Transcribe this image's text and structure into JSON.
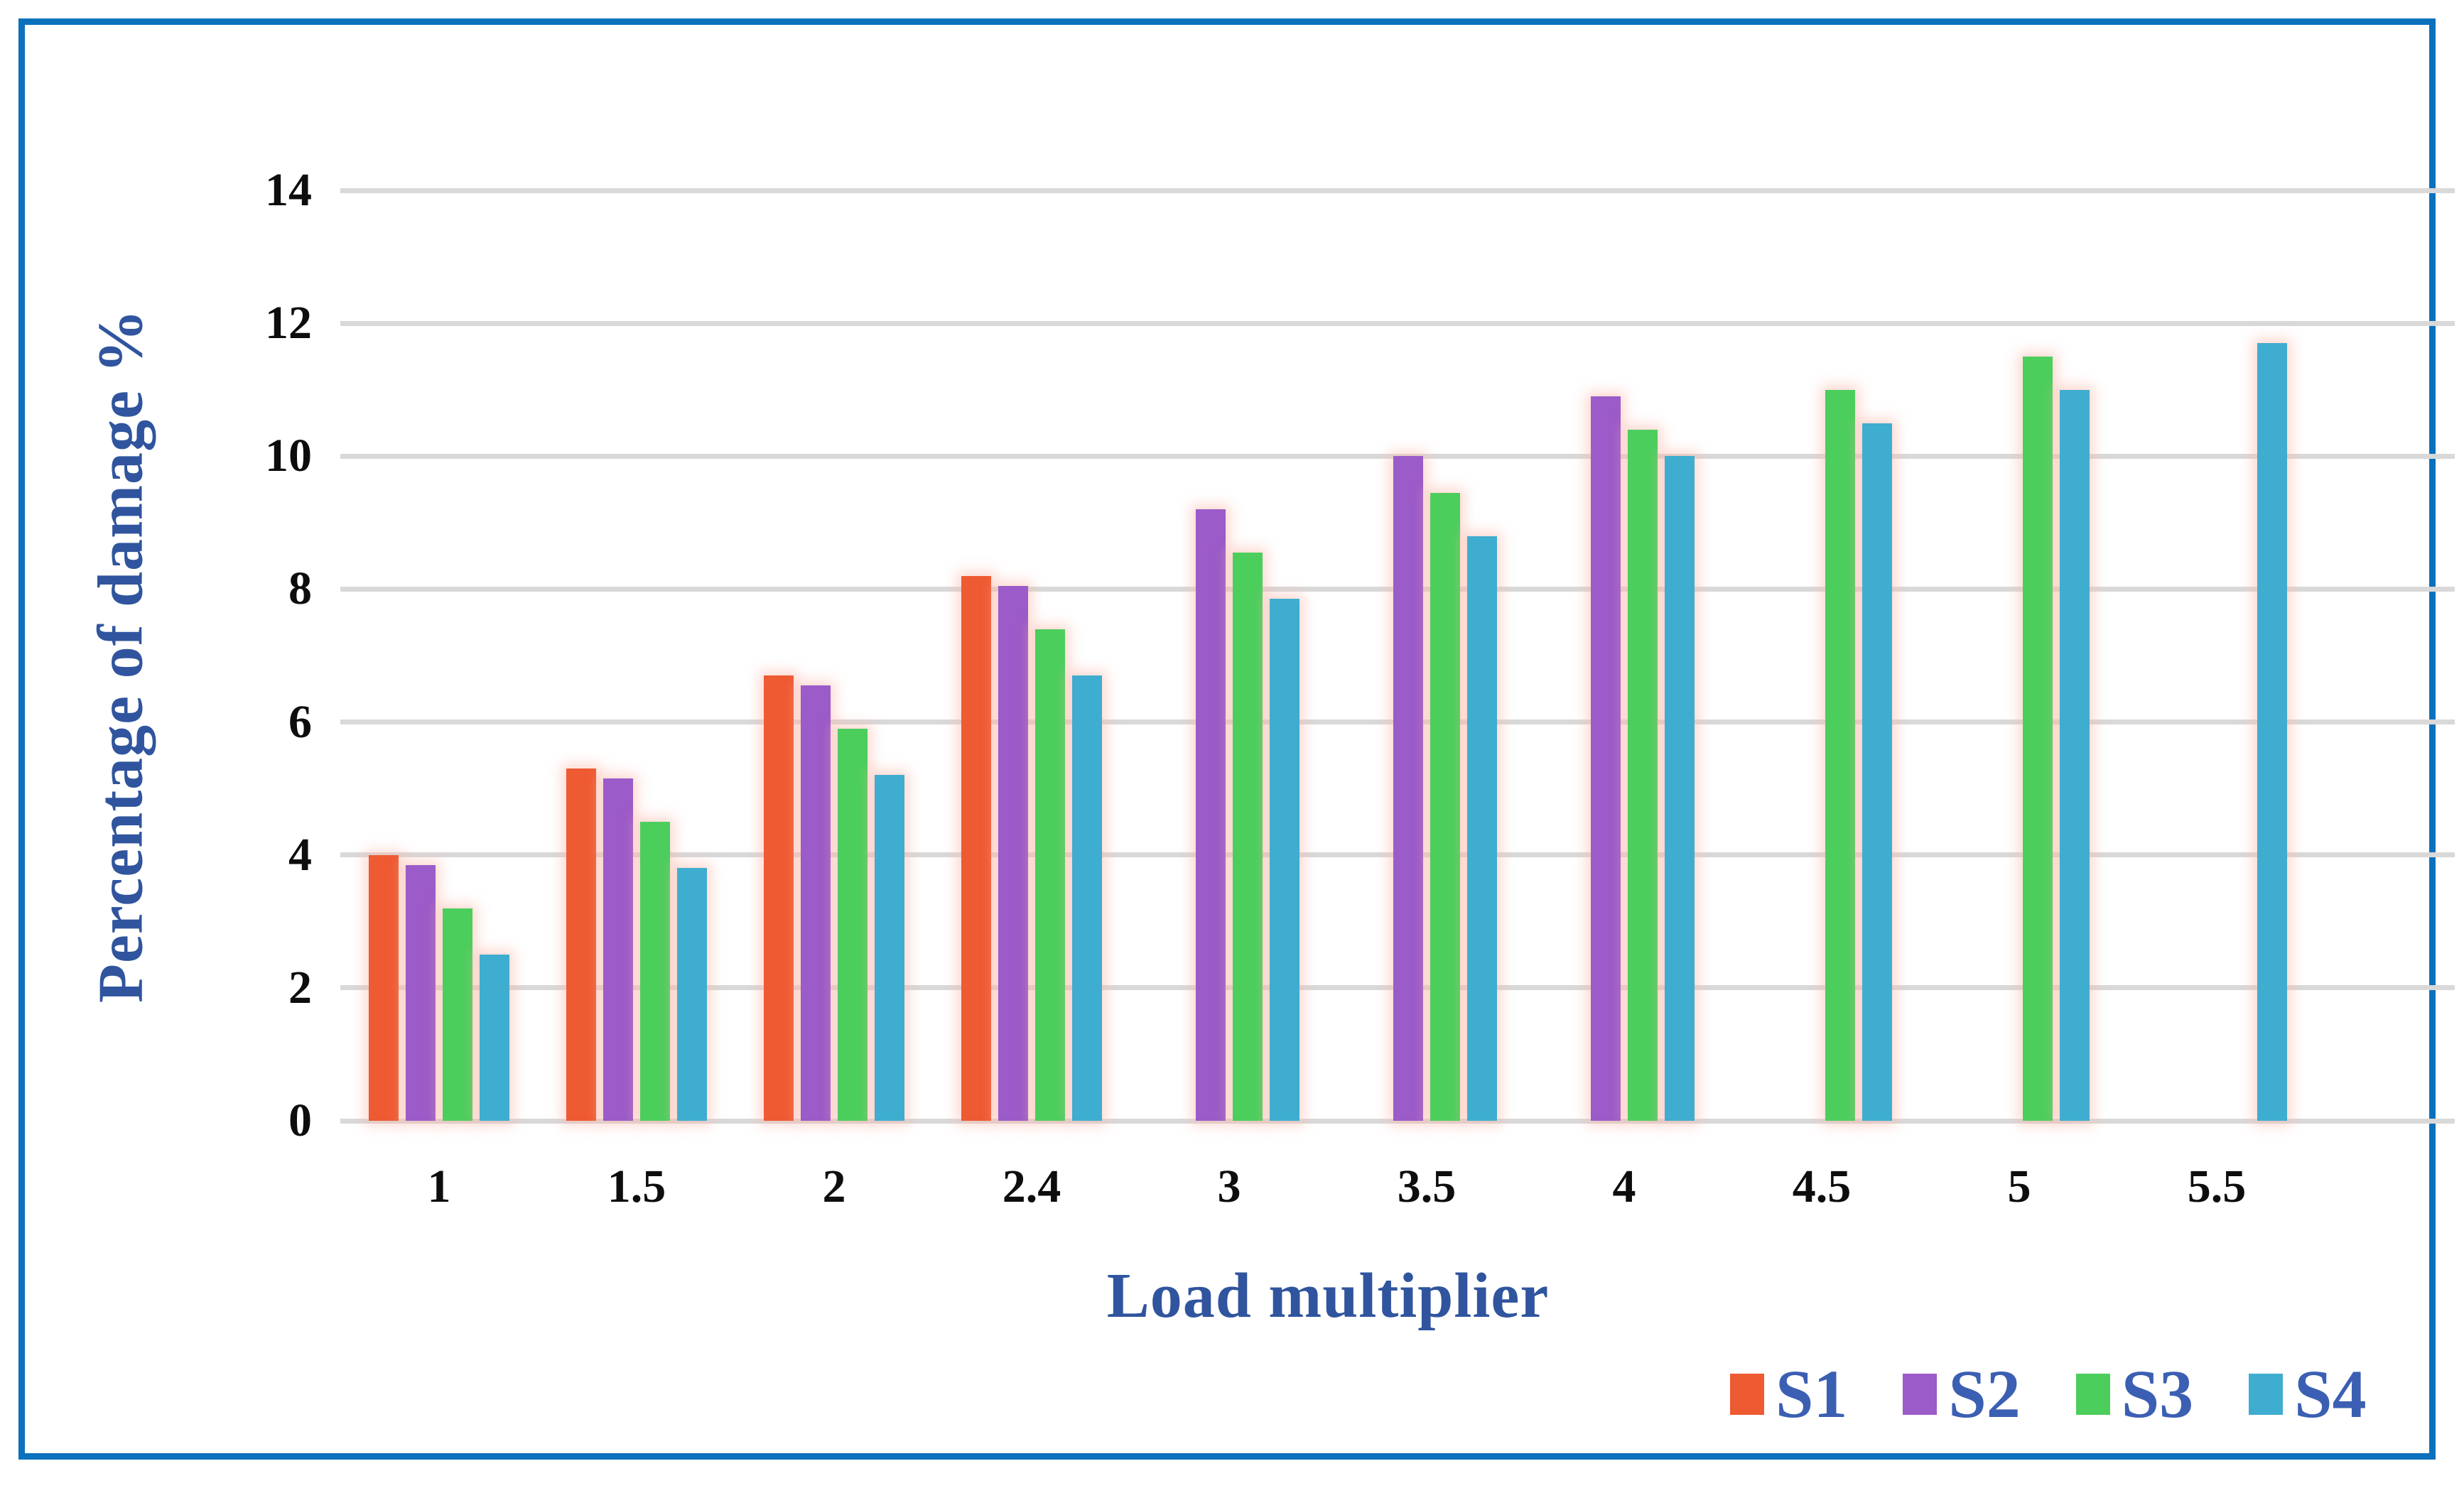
{
  "chart_data": {
    "type": "bar",
    "title": "",
    "xlabel": "Load multiplier",
    "ylabel": "Percentage of damage %",
    "categories": [
      "1",
      "1.5",
      "2",
      "2.4",
      "3",
      "3.5",
      "4",
      "4.5",
      "5",
      "5.5"
    ],
    "series": [
      {
        "name": "S1",
        "color": "#EE5A32",
        "values": [
          4.0,
          5.3,
          6.7,
          8.2,
          null,
          null,
          null,
          null,
          null,
          null
        ]
      },
      {
        "name": "S2",
        "color": "#9B5BC8",
        "values": [
          3.85,
          5.15,
          6.55,
          8.05,
          9.2,
          10.0,
          10.9,
          null,
          null,
          null
        ]
      },
      {
        "name": "S3",
        "color": "#4CCE5D",
        "values": [
          3.2,
          4.5,
          5.9,
          7.4,
          8.55,
          9.45,
          10.4,
          11.0,
          11.5,
          null
        ]
      },
      {
        "name": "S4",
        "color": "#3FADCF",
        "values": [
          2.5,
          3.8,
          5.2,
          6.7,
          7.85,
          8.8,
          10.0,
          10.5,
          11.0,
          11.7
        ]
      }
    ],
    "ylim": [
      0,
      14
    ],
    "yticks": [
      0,
      2,
      4,
      6,
      8,
      10,
      12,
      14
    ],
    "grid": true,
    "legend_position": "bottom-right"
  },
  "style": {
    "frame_border_color": "#0B71BD",
    "gridline_color": "#D9D9D9",
    "tick_label_color": "#0d0d0d",
    "axis_title_color": "#30559E",
    "legend_label_color": "#3B5FB2"
  }
}
